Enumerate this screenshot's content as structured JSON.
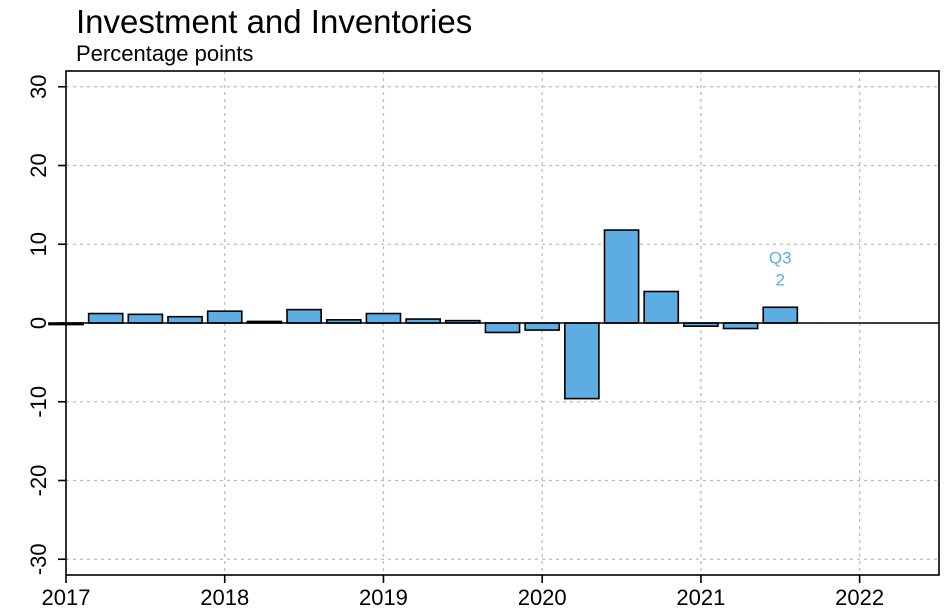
{
  "chart_data": {
    "type": "bar",
    "title": "Investment and Inventories",
    "subtitle": "Percentage points",
    "x_tick_labels": [
      "2017",
      "2018",
      "2019",
      "2020",
      "2021",
      "2022"
    ],
    "y_tick_labels": [
      "-30",
      "-20",
      "-10",
      "0",
      "10",
      "20",
      "30"
    ],
    "y_ticks": [
      -30,
      -20,
      -10,
      0,
      10,
      20,
      30
    ],
    "x_ticks": [
      2017,
      2018,
      2019,
      2020,
      2021,
      2022
    ],
    "xlim": [
      2017,
      2022.5
    ],
    "ylim": [
      -32,
      32
    ],
    "grid": true,
    "bar_color": "#5DADE2",
    "annotation_color": "#5DADE2",
    "categories": [
      "2017 Q1",
      "2017 Q2",
      "2017 Q3",
      "2017 Q4",
      "2018 Q1",
      "2018 Q2",
      "2018 Q3",
      "2018 Q4",
      "2019 Q1",
      "2019 Q2",
      "2019 Q3",
      "2019 Q4",
      "2020 Q1",
      "2020 Q2",
      "2020 Q3",
      "2020 Q4",
      "2021 Q1",
      "2021 Q2",
      "2021 Q3"
    ],
    "x": [
      2017.0,
      2017.25,
      2017.5,
      2017.75,
      2018.0,
      2018.25,
      2018.5,
      2018.75,
      2019.0,
      2019.25,
      2019.5,
      2019.75,
      2020.0,
      2020.25,
      2020.5,
      2020.75,
      2021.0,
      2021.25,
      2021.5
    ],
    "values": [
      -0.2,
      1.2,
      1.1,
      0.8,
      1.5,
      0.2,
      1.7,
      0.4,
      1.2,
      0.5,
      0.3,
      -1.2,
      -0.9,
      -9.6,
      11.8,
      4.0,
      -0.4,
      -0.7,
      2.0
    ],
    "annotation": {
      "quarter": "Q3",
      "value": "2"
    }
  }
}
